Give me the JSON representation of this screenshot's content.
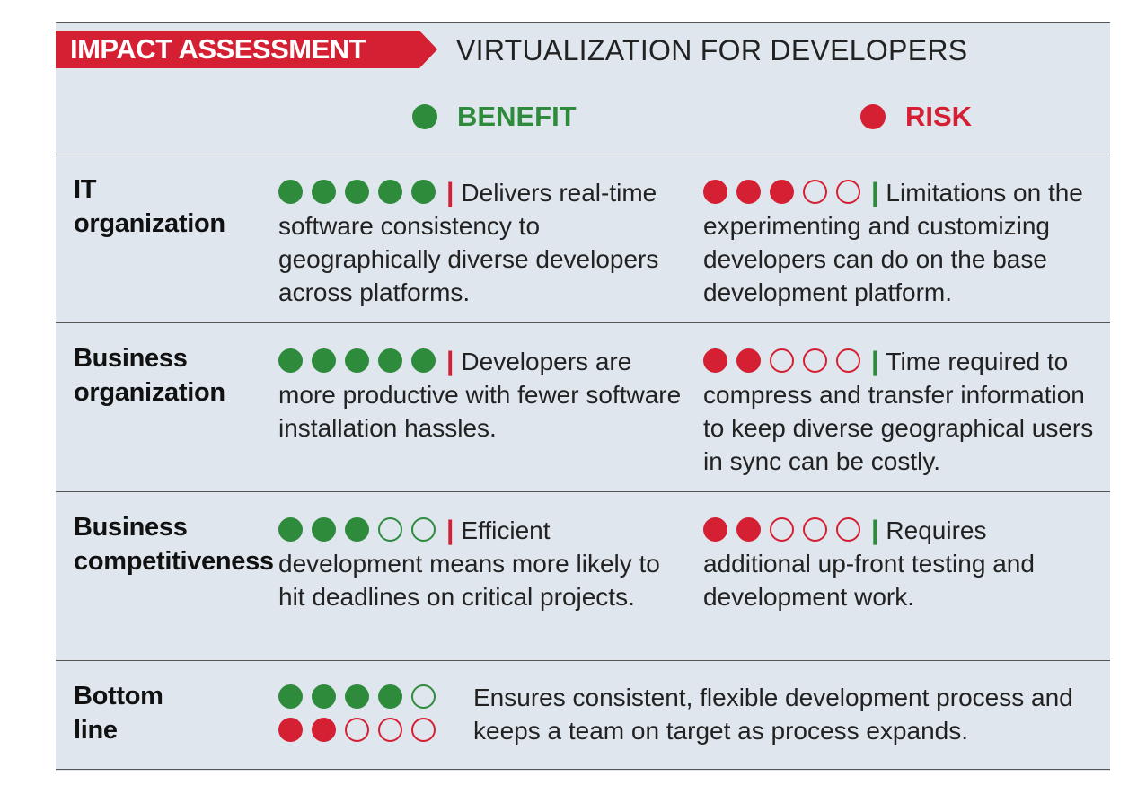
{
  "header": {
    "tag": "IMPACT ASSESSMENT",
    "title": "VIRTUALIZATION FOR DEVELOPERS"
  },
  "legend": {
    "benefit": "BENEFIT",
    "risk": "RISK"
  },
  "colors": {
    "benefit": "#2e8b3c",
    "risk": "#d42032",
    "background": "#dfe6ee"
  },
  "rows": [
    {
      "label_line1": "IT",
      "label_line2": "organization",
      "benefit_rating": 5,
      "benefit_text": "Delivers real-time software consistency to geographically diverse developers across platforms.",
      "risk_rating": 3,
      "risk_text": "Limitations on the experimenting and customizing developers can do on the base development platform."
    },
    {
      "label_line1": "Business",
      "label_line2": "organization",
      "benefit_rating": 5,
      "benefit_text": "Developers are more productive with fewer software installation hassles.",
      "risk_rating": 2,
      "risk_text": "Time required to compress and transfer information to keep diverse geographical users in sync can be costly."
    },
    {
      "label_line1": "Business",
      "label_line2": "competitiveness",
      "benefit_rating": 3,
      "benefit_text": "Efficient development means more likely to hit deadlines on critical projects.",
      "risk_rating": 2,
      "risk_text": "Requires additional up-front testing and development work."
    }
  ],
  "bottom_line": {
    "label_line1": "Bottom",
    "label_line2": "line",
    "benefit_rating": 4,
    "risk_rating": 2,
    "text": "Ensures consistent, flexible development process and keeps a team on target as process expands."
  },
  "rating_max": 5
}
